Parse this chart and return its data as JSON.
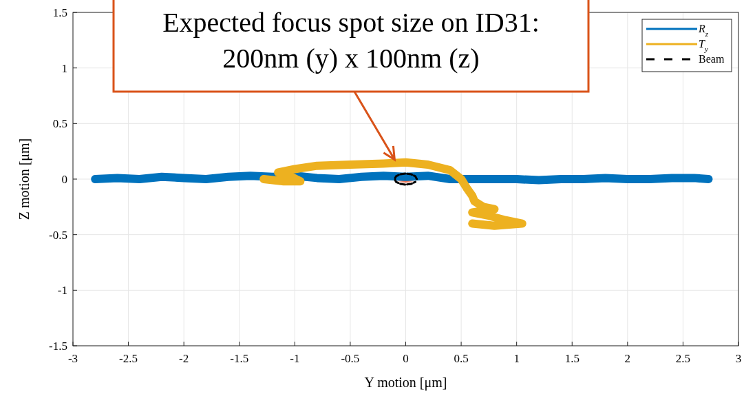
{
  "chart_data": {
    "type": "line",
    "xlabel": "Y motion [μm]",
    "ylabel": "Z motion [μm]",
    "xlim": [
      -3,
      3
    ],
    "ylim": [
      -1.5,
      1.5
    ],
    "xticks": [
      -3,
      -2.5,
      -2,
      -1.5,
      -1,
      -0.5,
      0,
      0.5,
      1,
      1.5,
      2,
      2.5,
      3
    ],
    "yticks": [
      -1.5,
      -1,
      -0.5,
      0,
      0.5,
      1,
      1.5
    ],
    "grid": true,
    "legend": "top right",
    "series": [
      {
        "name": "R$_{z}$",
        "color": "#0072bd",
        "x": [
          -2.8,
          -2.6,
          -2.4,
          -2.2,
          -2.0,
          -1.8,
          -1.6,
          -1.4,
          -1.2,
          -1.0,
          -0.8,
          -0.6,
          -0.4,
          -0.2,
          0.0,
          0.2,
          0.4,
          0.6,
          0.8,
          1.0,
          1.2,
          1.4,
          1.6,
          1.8,
          2.0,
          2.2,
          2.4,
          2.6,
          2.73
        ],
        "values": [
          0.0,
          0.01,
          0.0,
          0.02,
          0.01,
          0.0,
          0.02,
          0.03,
          0.02,
          0.03,
          0.01,
          0.0,
          0.02,
          0.03,
          0.02,
          0.03,
          0.0,
          0.0,
          0.0,
          0.0,
          -0.01,
          0.0,
          0.0,
          0.01,
          0.0,
          0.0,
          0.01,
          0.01,
          0.0
        ]
      },
      {
        "name": "T$_{y}$",
        "color": "#edb120",
        "x": [
          -1.28,
          -1.1,
          -0.95,
          -1.05,
          -1.15,
          -1.0,
          -0.8,
          -0.5,
          -0.2,
          0.0,
          0.2,
          0.4,
          0.5,
          0.55,
          0.6,
          0.62,
          0.7,
          0.8,
          0.6,
          0.75,
          0.9,
          1.05,
          0.8,
          0.6
        ],
        "values": [
          0.0,
          -0.02,
          -0.02,
          0.03,
          0.06,
          0.09,
          0.12,
          0.13,
          0.14,
          0.15,
          0.13,
          0.08,
          0.0,
          -0.08,
          -0.15,
          -0.2,
          -0.25,
          -0.27,
          -0.3,
          -0.33,
          -0.37,
          -0.4,
          -0.42,
          -0.4
        ]
      },
      {
        "name": "Beam",
        "color": "#000000",
        "line_style": "dashed",
        "x": [
          0.1,
          0.087,
          0.05,
          0.0,
          -0.05,
          -0.087,
          -0.1,
          -0.087,
          -0.05,
          0.0,
          0.05,
          0.087
        ],
        "values": [
          0.0,
          0.025,
          0.043,
          0.05,
          0.043,
          0.025,
          0.0,
          -0.025,
          -0.043,
          -0.05,
          -0.043,
          -0.025
        ]
      }
    ],
    "annotations": [
      {
        "text": "Expected focus spot size on ID31:\n200nm (y) x 100nm (z)",
        "x": -0.1,
        "y": 0.15
      }
    ]
  }
}
